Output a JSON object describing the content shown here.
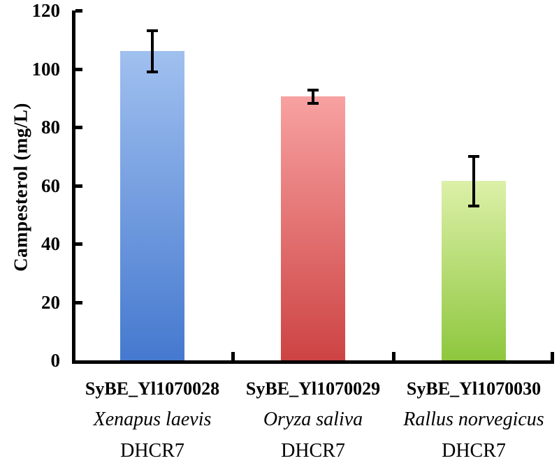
{
  "chart_data": {
    "type": "bar",
    "title": "",
    "xlabel": "",
    "ylabel": "Campesterol (mg/L)",
    "ylim": [
      0,
      120
    ],
    "yticks": [
      0,
      20,
      40,
      60,
      80,
      100,
      120
    ],
    "grid": false,
    "legend": null,
    "categories": [
      {
        "strain": "SyBE_Yl1070028",
        "species": "Xenapus laevis",
        "gene": "DHCR7"
      },
      {
        "strain": "SyBE_Yl1070029",
        "species": "Oryza saliva",
        "gene": "DHCR7"
      },
      {
        "strain": "SyBE_Yl1070030",
        "species": "Rallus norvegicus",
        "gene": "DHCR7"
      }
    ],
    "values": [
      106,
      90.5,
      61.5
    ],
    "errors": [
      7,
      2.3,
      8.5
    ],
    "bar_colors": [
      {
        "top": "#a0c0ef",
        "bottom": "#4579cf"
      },
      {
        "top": "#f8a1a1",
        "bottom": "#cd4343"
      },
      {
        "top": "#dcf0a8",
        "bottom": "#8ec73e"
      }
    ],
    "axis_color": "#000000",
    "error_bar_color": "#000000",
    "text_color": "#000000"
  }
}
